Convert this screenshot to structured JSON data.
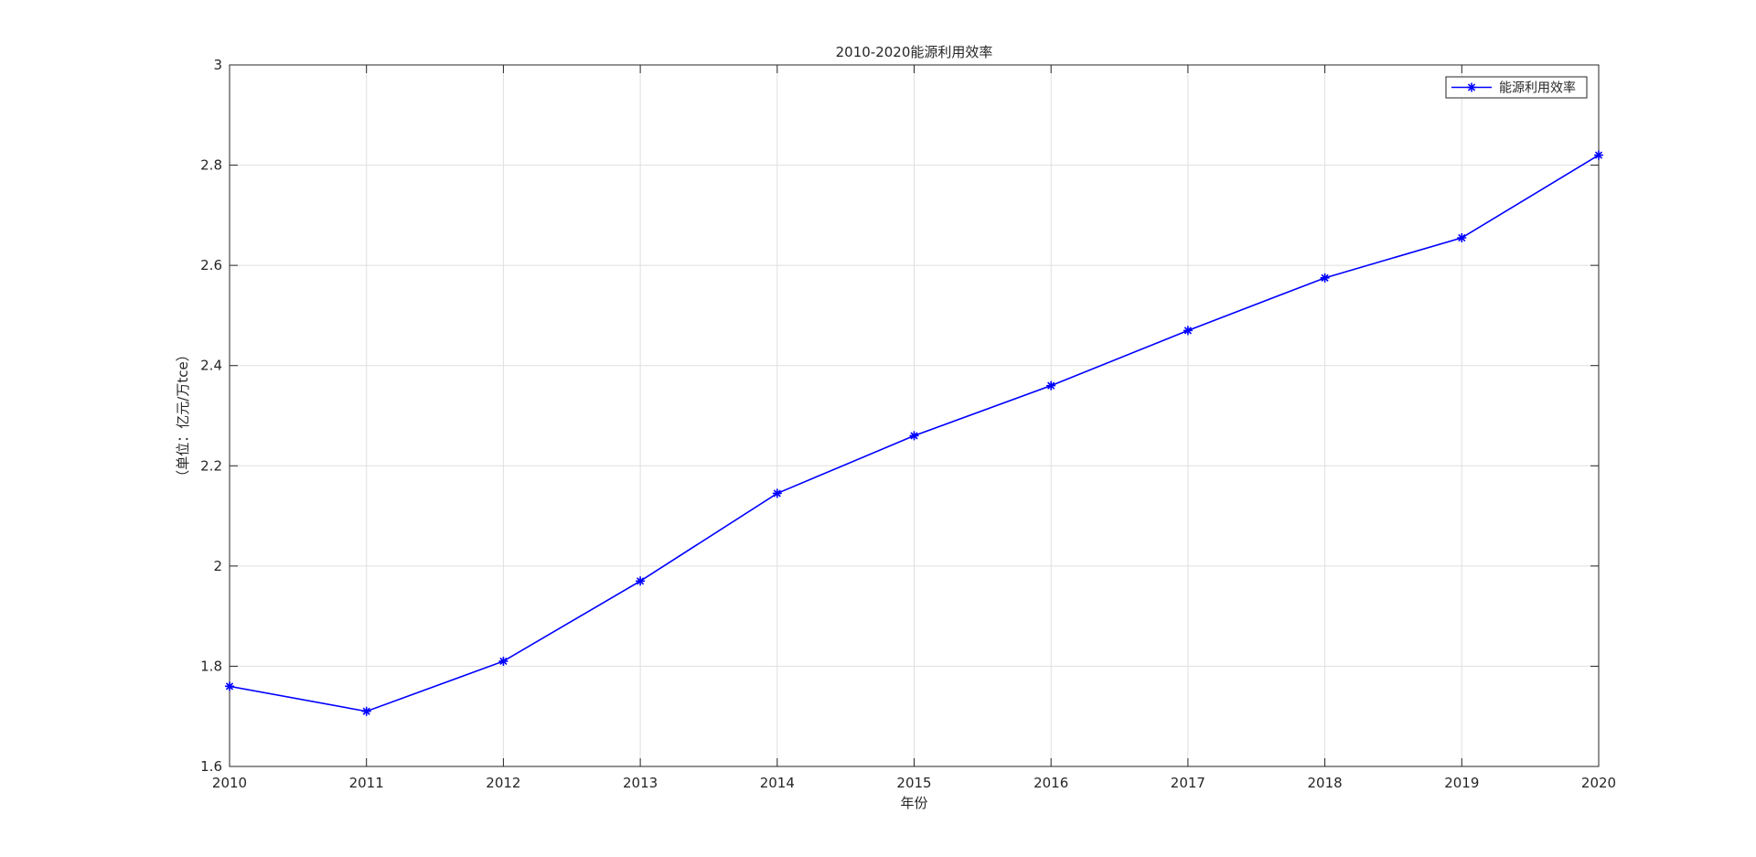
{
  "chart_data": {
    "type": "line",
    "title": "2010-2020能源利用效率",
    "xlabel": "年份",
    "ylabel": "（单位：亿元/万tce）",
    "categories": [
      "2010",
      "2011",
      "2012",
      "2013",
      "2014",
      "2015",
      "2016",
      "2017",
      "2018",
      "2019",
      "2020"
    ],
    "x": [
      2010,
      2011,
      2012,
      2013,
      2014,
      2015,
      2016,
      2017,
      2018,
      2019,
      2020
    ],
    "series": [
      {
        "name": "能源利用效率",
        "values": [
          1.76,
          1.71,
          1.81,
          1.97,
          2.145,
          2.26,
          2.36,
          2.47,
          2.575,
          2.655,
          2.82
        ],
        "color": "#0000ff",
        "marker": "asterisk"
      }
    ],
    "xlim": [
      2010,
      2020
    ],
    "ylim": [
      1.6,
      3.0
    ],
    "yticks": [
      1.6,
      1.8,
      2.0,
      2.2,
      2.4,
      2.6,
      2.8,
      3.0
    ],
    "ytick_labels": [
      "1.6",
      "1.8",
      "2",
      "2.2",
      "2.4",
      "2.6",
      "2.8",
      "3"
    ],
    "grid": true,
    "legend_position": "top-right"
  }
}
